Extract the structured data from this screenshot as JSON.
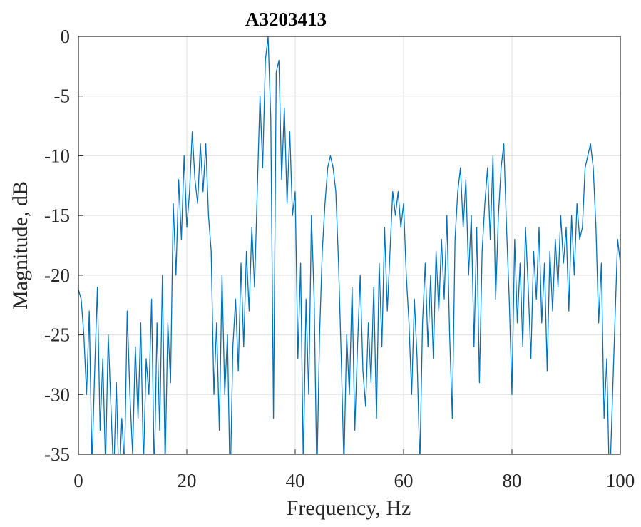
{
  "chart_data": {
    "type": "line",
    "title": "A3203413",
    "xlabel": "Frequency, Hz",
    "ylabel": "Magnitude, dB",
    "xlim": [
      0,
      100
    ],
    "ylim": [
      -35,
      0
    ],
    "xticks": [
      0,
      20,
      40,
      60,
      80,
      100
    ],
    "yticks": [
      0,
      -5,
      -10,
      -15,
      -20,
      -25,
      -30,
      -35
    ],
    "grid": true,
    "x": [
      0,
      0.5,
      1,
      1.5,
      2,
      2.5,
      3,
      3.5,
      4,
      4.5,
      5,
      5.5,
      6,
      6.5,
      7,
      7.5,
      8,
      8.5,
      9,
      9.5,
      10,
      10.5,
      11,
      11.5,
      12,
      12.5,
      13,
      13.5,
      14,
      14.5,
      15,
      15.5,
      16,
      16.5,
      17,
      17.5,
      18,
      18.5,
      19,
      19.5,
      20,
      20.5,
      21,
      21.5,
      22,
      22.5,
      23,
      23.5,
      24,
      24.5,
      25,
      25.5,
      26,
      26.5,
      27,
      27.5,
      28,
      28.5,
      29,
      29.5,
      30,
      30.5,
      31,
      31.5,
      32,
      32.5,
      33,
      33.5,
      34,
      34.5,
      35,
      35.5,
      36,
      36.5,
      37,
      37.5,
      38,
      38.5,
      39,
      39.5,
      40,
      40.5,
      41,
      41.5,
      42,
      42.5,
      43,
      43.5,
      44,
      44.5,
      45,
      45.5,
      46,
      46.5,
      47,
      47.5,
      48,
      48.5,
      49,
      49.5,
      50,
      50.5,
      51,
      51.5,
      52,
      52.5,
      53,
      53.5,
      54,
      54.5,
      55,
      55.5,
      56,
      56.5,
      57,
      57.5,
      58,
      58.5,
      59,
      59.5,
      60,
      60.5,
      61,
      61.5,
      62,
      62.5,
      63,
      63.5,
      64,
      64.5,
      65,
      65.5,
      66,
      66.5,
      67,
      67.5,
      68,
      68.5,
      69,
      69.5,
      70,
      70.5,
      71,
      71.5,
      72,
      72.5,
      73,
      73.5,
      74,
      74.5,
      75,
      75.5,
      76,
      76.5,
      77,
      77.5,
      78,
      78.5,
      79,
      79.5,
      80,
      80.5,
      81,
      81.5,
      82,
      82.5,
      83,
      83.5,
      84,
      84.5,
      85,
      85.5,
      86,
      86.5,
      87,
      87.5,
      88,
      88.5,
      89,
      89.5,
      90,
      90.5,
      91,
      91.5,
      92,
      92.5,
      93,
      93.5,
      94,
      94.5,
      95,
      95.5,
      96,
      96.5,
      97,
      97.5,
      98,
      98.5,
      99,
      99.5,
      100
    ],
    "series": [
      {
        "color": "#0072bd",
        "values": [
          -21.2,
          -22,
          -25,
          -30,
          -23,
          -36,
          -28,
          -21,
          -33,
          -27,
          -36,
          -25,
          -31,
          -37,
          -29,
          -38,
          -32,
          -36,
          -23,
          -30,
          -35,
          -26,
          -32,
          -24,
          -36,
          -27,
          -30,
          -22,
          -37,
          -24,
          -33,
          -20,
          -36,
          -24,
          -29,
          -14,
          -20,
          -12,
          -17,
          -10,
          -16,
          -13,
          -8,
          -12,
          -14,
          -9,
          -13,
          -9,
          -15,
          -18,
          -30,
          -24,
          -33,
          -20,
          -30,
          -25,
          -38,
          -26,
          -22,
          -28,
          -19,
          -26,
          -18,
          -23,
          -16,
          -21,
          -13,
          -5,
          -11,
          -2,
          0,
          -7,
          -32,
          -3,
          -2,
          -12,
          -6,
          -14,
          -8,
          -15,
          -13,
          -27,
          -19,
          -36,
          -22,
          -30,
          -15,
          -22,
          -37,
          -25,
          -18,
          -14,
          -11,
          -10,
          -11,
          -13,
          -19,
          -27,
          -36,
          -25,
          -30,
          -21,
          -33,
          -26,
          -20,
          -28,
          -31,
          -24,
          -29,
          -21,
          -32,
          -19,
          -26,
          -16,
          -23,
          -18,
          -13,
          -15,
          -13,
          -16,
          -14,
          -20,
          -24,
          -30,
          -22,
          -27,
          -36,
          -24,
          -19,
          -26,
          -20,
          -27,
          -18,
          -23,
          -17,
          -22,
          -15,
          -25,
          -32,
          -17,
          -13,
          -11,
          -16,
          -12,
          -20,
          -15,
          -26,
          -16,
          -29,
          -18,
          -14,
          -11,
          -17,
          -10,
          -22,
          -15,
          -11,
          -9,
          -16,
          -22,
          -30,
          -17,
          -24,
          -19,
          -26,
          -16,
          -21,
          -27,
          -18,
          -22,
          -16,
          -24,
          -19,
          -28,
          -18,
          -23,
          -17,
          -21,
          -15,
          -19,
          -16,
          -23,
          -15,
          -20,
          -14,
          -17,
          -16,
          -11,
          -10,
          -9,
          -11,
          -16,
          -24,
          -19,
          -32,
          -27,
          -38,
          -31,
          -24,
          -17,
          -19
        ]
      }
    ]
  }
}
